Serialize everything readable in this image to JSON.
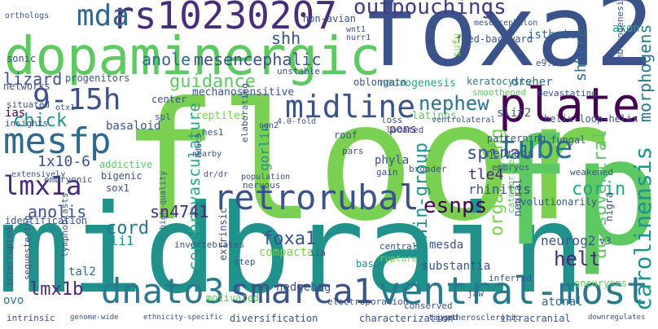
{
  "words": [
    {
      "text": "floor",
      "color": "#7ad151"
    },
    {
      "text": "midbrain",
      "color": "#21918c"
    },
    {
      "text": "foxa2",
      "color": "#3b528b"
    },
    {
      "text": "fp",
      "color": "#5ec962"
    },
    {
      "text": "dopaminergic",
      "color": "#5ec962"
    },
    {
      "text": "plate",
      "color": "#440154"
    },
    {
      "text": "ventral-most",
      "color": "#2a788e"
    },
    {
      "text": "rs10230207",
      "color": "#472d7b"
    },
    {
      "text": "dnato3",
      "color": "#2a788e"
    },
    {
      "text": "smarca1",
      "color": "#3b528b"
    },
    {
      "text": "retrorubal",
      "color": "#3b528b"
    },
    {
      "text": "midline",
      "color": "#3b528b"
    },
    {
      "text": "tube",
      "color": "#2c728e"
    },
    {
      "text": "mda",
      "color": "#31688e"
    },
    {
      "text": "9-15h",
      "color": "#3b528b"
    },
    {
      "text": "mesfp",
      "color": "#31688e"
    },
    {
      "text": "lmx1a",
      "color": "#482878"
    },
    {
      "text": "outpouchings",
      "color": "#443983"
    },
    {
      "text": "carolinensis",
      "color": "#21918c"
    },
    {
      "text": "nephew",
      "color": "#2c728e"
    },
    {
      "text": "guidance",
      "color": "#5ec962"
    },
    {
      "text": "mesencephalic",
      "color": "#3b528b"
    },
    {
      "text": "anole",
      "color": "#31688e"
    },
    {
      "text": "shh",
      "color": "#3b528b"
    },
    {
      "text": "lizard",
      "color": "#3b528b"
    },
    {
      "text": "chick",
      "color": "#21918c"
    },
    {
      "text": "spinal",
      "color": "#3b528b"
    },
    {
      "text": "esnps",
      "color": "#440154"
    },
    {
      "text": "within-group",
      "color": "#21918c"
    },
    {
      "text": "cerebrovasculature",
      "color": "#22a884"
    },
    {
      "text": "sn4741",
      "color": "#482878"
    },
    {
      "text": "anolis",
      "color": "#3b528b"
    },
    {
      "text": "cord",
      "color": "#2a788e"
    },
    {
      "text": "foxa1",
      "color": "#3b528b"
    },
    {
      "text": "lmx1b",
      "color": "#482878"
    },
    {
      "text": "helt",
      "color": "#482878"
    },
    {
      "text": "organizing",
      "color": "#7ad151"
    },
    {
      "text": "dorsoventral",
      "color": "#5ec962"
    },
    {
      "text": "corin",
      "color": "#22a884"
    },
    {
      "text": "tle4",
      "color": "#482878"
    },
    {
      "text": "rhinitis",
      "color": "#3b528b"
    },
    {
      "text": "morphogens",
      "color": "#2a788e"
    },
    {
      "text": "shhcre",
      "color": "#31688e"
    },
    {
      "text": "gorlin",
      "color": "#21918c"
    },
    {
      "text": "1x10-6",
      "color": "#3b528b"
    },
    {
      "text": "neurog2",
      "color": "#3b528b"
    },
    {
      "text": "hedgehog",
      "color": "#3b528b"
    },
    {
      "text": "mesda",
      "color": "#3b528b"
    },
    {
      "text": "compacta",
      "color": "#7ad151"
    },
    {
      "text": "gli1",
      "color": "#21918c"
    },
    {
      "text": "ovo",
      "color": "#2a788e"
    },
    {
      "text": "tal2",
      "color": "#31688e"
    },
    {
      "text": "ias",
      "color": "#440154"
    },
    {
      "text": "keratocysts",
      "color": "#2a788e"
    },
    {
      "text": "dreher",
      "color": "#31688e"
    },
    {
      "text": "isthmic",
      "color": "#31688e"
    },
    {
      "text": "axon",
      "color": "#22a884"
    },
    {
      "text": "sufu",
      "color": "#7ad151"
    },
    {
      "text": "mechanosensitive",
      "color": "#3b528b"
    },
    {
      "text": "neurogenesis",
      "color": "#22a884"
    },
    {
      "text": "basaloid",
      "color": "#3b528b"
    },
    {
      "text": "reptiles",
      "color": "#7ad151"
    },
    {
      "text": "addictive",
      "color": "#5ec962"
    },
    {
      "text": "bigenic",
      "color": "#3b528b"
    },
    {
      "text": "sox1",
      "color": "#3b528b"
    },
    {
      "text": "slit2",
      "color": "#3b528b"
    },
    {
      "text": "neurons",
      "color": "#3b528b"
    },
    {
      "text": "phyla",
      "color": "#3b528b"
    },
    {
      "text": "pons",
      "color": "#482878"
    },
    {
      "text": "helix-loop-helix",
      "color": "#3b528b"
    },
    {
      "text": "evolutionarily",
      "color": "#3b528b"
    },
    {
      "text": "iia",
      "color": "#3b528b"
    },
    {
      "text": "central",
      "color": "#3b528b"
    },
    {
      "text": "rupture",
      "color": "#7ad151"
    },
    {
      "text": "basic",
      "color": "#21918c"
    },
    {
      "text": "substantia",
      "color": "#3b528b"
    },
    {
      "text": "neural",
      "color": "#3b528b"
    },
    {
      "text": "atonal",
      "color": "#31688e"
    },
    {
      "text": "diversification",
      "color": "#3b528b"
    },
    {
      "text": "characterization",
      "color": "#3b528b"
    },
    {
      "text": "intracranial",
      "color": "#3b528b"
    },
    {
      "text": "intrinsic",
      "color": "#3b528b"
    },
    {
      "text": "motivated",
      "color": "#5ec962"
    },
    {
      "text": "identification",
      "color": "#3b528b"
    },
    {
      "text": "lymphoblasts",
      "color": "#3b528b"
    },
    {
      "text": "sequestering",
      "color": "#3b528b"
    },
    {
      "text": "interrupted",
      "color": "#3b528b"
    },
    {
      "text": "progenitors",
      "color": "#3b528b"
    },
    {
      "text": "networks",
      "color": "#3b528b"
    },
    {
      "text": "sonic",
      "color": "#3b528b"
    },
    {
      "text": "orthologs",
      "color": "#3b528b"
    },
    {
      "text": "non-avian",
      "color": "#3b528b"
    },
    {
      "text": "feed-backward",
      "color": "#3b528b"
    },
    {
      "text": "mesencephalon",
      "color": "#3b528b"
    },
    {
      "text": "nurr1",
      "color": "#3b528b"
    },
    {
      "text": "wnt1",
      "color": "#3b528b"
    },
    {
      "text": "oblongata",
      "color": "#3b528b"
    },
    {
      "text": "unstable",
      "color": "#3b528b"
    },
    {
      "text": "center",
      "color": "#3b528b"
    },
    {
      "text": "spl",
      "color": "#3b528b"
    },
    {
      "text": "hes1",
      "color": "#3b528b"
    },
    {
      "text": "elaborating",
      "color": "#3b528b"
    },
    {
      "text": "ngn2",
      "color": "#3b528b"
    },
    {
      "text": "4.0-fold",
      "color": "#3b528b"
    },
    {
      "text": "latinos",
      "color": "#5ec962"
    },
    {
      "text": "ventrolateral",
      "color": "#3b528b"
    },
    {
      "text": "located",
      "color": "#3b528b"
    },
    {
      "text": "loss",
      "color": "#3b528b"
    },
    {
      "text": "roof",
      "color": "#3b528b"
    },
    {
      "text": "patterning",
      "color": "#3b528b"
    },
    {
      "text": "fungal",
      "color": "#3b528b"
    },
    {
      "text": "weakened",
      "color": "#3b528b"
    },
    {
      "text": "nigra",
      "color": "#3b528b"
    },
    {
      "text": "v3",
      "color": "#3b528b"
    },
    {
      "text": "aneurysms",
      "color": "#5ec962"
    },
    {
      "text": "nearby",
      "color": "#3b528b"
    },
    {
      "text": "hdac9",
      "color": "#3b528b"
    },
    {
      "text": "dr/dr",
      "color": "#3b528b"
    },
    {
      "text": "high-quality",
      "color": "#3b528b"
    },
    {
      "text": "invertebrates",
      "color": "#3b528b"
    },
    {
      "text": "extrinsic",
      "color": "#3b528b"
    },
    {
      "text": "step",
      "color": "#3b528b"
    },
    {
      "text": "embryonic",
      "color": "#3b528b"
    },
    {
      "text": "extensively",
      "color": "#3b528b"
    },
    {
      "text": "otx1",
      "color": "#3b528b"
    },
    {
      "text": "situated",
      "color": "#3b528b"
    },
    {
      "text": "insights",
      "color": "#3b528b"
    },
    {
      "text": "devastating",
      "color": "#3b528b"
    },
    {
      "text": "smoothened",
      "color": "#5ec962"
    },
    {
      "text": "electroporation",
      "color": "#3b528b"
    },
    {
      "text": "jaw",
      "color": "#3b528b"
    },
    {
      "text": "conserved",
      "color": "#3b528b"
    },
    {
      "text": "inferred",
      "color": "#3b528b"
    },
    {
      "text": "broader",
      "color": "#3b528b"
    },
    {
      "text": "pars",
      "color": "#3b528b"
    },
    {
      "text": "gain",
      "color": "#3b528b"
    },
    {
      "text": "population",
      "color": "#3b528b"
    },
    {
      "text": "nervous",
      "color": "#3b528b"
    },
    {
      "text": "embryos",
      "color": "#3b528b"
    },
    {
      "text": "categorized",
      "color": "#5ec962"
    },
    {
      "text": "e9.5",
      "color": "#3b528b"
    },
    {
      "text": "embryogenesis",
      "color": "#3b528b"
    },
    {
      "text": "tagged",
      "color": "#3b528b"
    },
    {
      "text": "atherosclerotic",
      "color": "#3b528b"
    },
    {
      "text": "genome-wide",
      "color": "#3b528b"
    },
    {
      "text": "ethnicity-specific",
      "color": "#3b528b"
    },
    {
      "text": "downregulates",
      "color": "#3b528b"
    }
  ]
}
